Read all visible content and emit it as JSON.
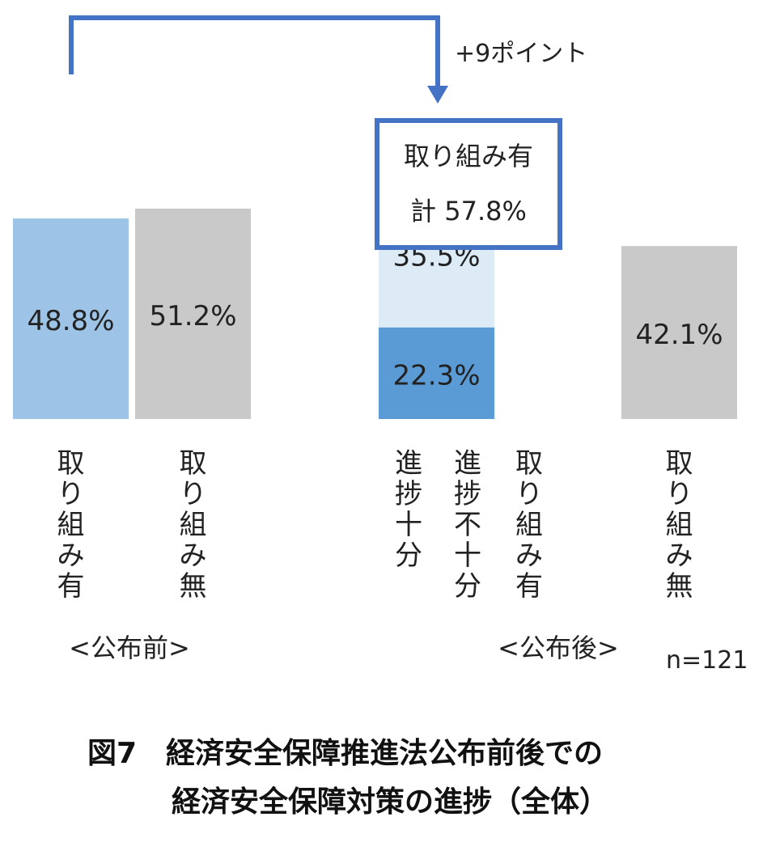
{
  "chart_data": {
    "type": "bar",
    "groups": [
      {
        "label": "<公布前>",
        "bars": [
          {
            "category": "取り組み有",
            "segments": [
              {
                "value": 48.8,
                "label": "48.8%",
                "color": "#9dc3e6"
              }
            ]
          },
          {
            "category": "取り組み無",
            "segments": [
              {
                "value": 51.2,
                "label": "51.2%",
                "color": "#c9c9c9"
              }
            ]
          }
        ]
      },
      {
        "label": "<公布後>",
        "bars": [
          {
            "category": "取り組み有",
            "segments": [
              {
                "name": "進捗十分",
                "value": 22.3,
                "label": "22.3%",
                "color": "#5b9bd5"
              },
              {
                "name": "進捗不十分",
                "value": 35.5,
                "label": "35.5%",
                "color": "#ddebf7"
              }
            ],
            "total_label": "計 57.8%"
          },
          {
            "category": "取り組み無",
            "segments": [
              {
                "value": 42.1,
                "label": "42.1%",
                "color": "#c9c9c9"
              }
            ]
          }
        ]
      }
    ],
    "ylim": [
      0,
      100
    ],
    "grid": false,
    "annotation": "+9ポイント",
    "sample": "n=121",
    "callout_title": "取り組み有"
  },
  "caption": {
    "line1": "図7　経済安全保障推進法公布前後での",
    "line2": "経済安全保障対策の進捗（全体）"
  },
  "colors": {
    "arrow": "#4472c4",
    "callout_border": "#4472c4"
  }
}
